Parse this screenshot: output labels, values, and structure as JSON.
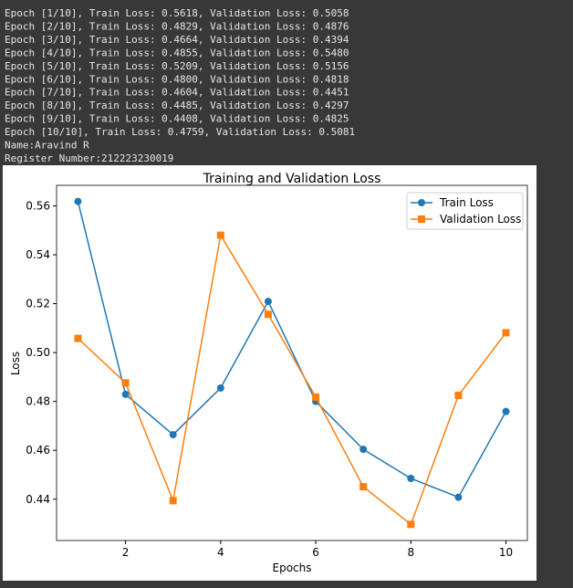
{
  "console": {
    "lines": [
      "Epoch [1/10], Train Loss: 0.5618, Validation Loss: 0.5058",
      "Epoch [2/10], Train Loss: 0.4829, Validation Loss: 0.4876",
      "Epoch [3/10], Train Loss: 0.4664, Validation Loss: 0.4394",
      "Epoch [4/10], Train Loss: 0.4855, Validation Loss: 0.5480",
      "Epoch [5/10], Train Loss: 0.5209, Validation Loss: 0.5156",
      "Epoch [6/10], Train Loss: 0.4800, Validation Loss: 0.4818",
      "Epoch [7/10], Train Loss: 0.4604, Validation Loss: 0.4451",
      "Epoch [8/10], Train Loss: 0.4485, Validation Loss: 0.4297",
      "Epoch [9/10], Train Loss: 0.4408, Validation Loss: 0.4825",
      "Epoch [10/10], Train Loss: 0.4759, Validation Loss: 0.5081",
      "Name:Aravind R",
      "Register Number:212223230019"
    ]
  },
  "chart_data": {
    "type": "line",
    "title": "Training and Validation Loss",
    "x_label": "Epochs",
    "y_label": "Loss",
    "x": [
      1,
      2,
      3,
      4,
      5,
      6,
      7,
      8,
      9,
      10
    ],
    "series": [
      {
        "name": "Train Loss",
        "color": "#1f77b4",
        "marker": "circle",
        "values": [
          0.5618,
          0.4829,
          0.4664,
          0.4855,
          0.5209,
          0.48,
          0.4604,
          0.4485,
          0.4408,
          0.4759
        ]
      },
      {
        "name": "Validation Loss",
        "color": "#ff7f0e",
        "marker": "square",
        "values": [
          0.5058,
          0.4876,
          0.4394,
          0.548,
          0.5156,
          0.4818,
          0.4451,
          0.4297,
          0.4825,
          0.5081
        ]
      }
    ],
    "xlim": [
      0.55,
      10.45
    ],
    "ylim": [
      0.4231,
      0.5684
    ],
    "xticks": [
      2,
      4,
      6,
      8,
      10
    ],
    "yticks": [
      0.44,
      0.46,
      0.48,
      {
        "value": 0.5,
        "label": "0.50"
      },
      0.52,
      0.54,
      0.56
    ],
    "legend": "upper right"
  }
}
